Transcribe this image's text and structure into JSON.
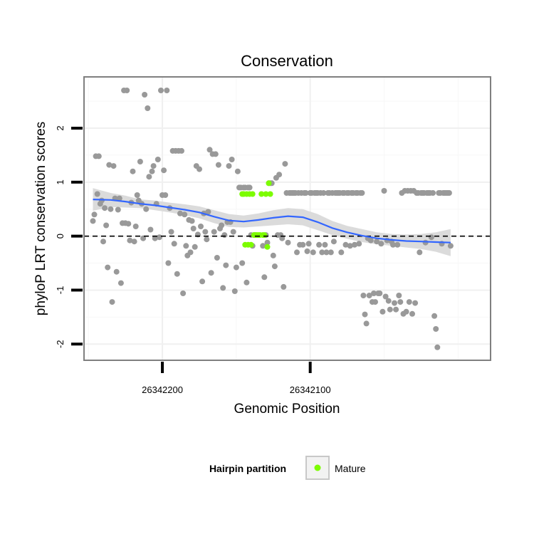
{
  "chart_data": {
    "type": "scatter",
    "title": "Conservation",
    "xlabel": "Genomic Position",
    "ylabel": "phyloP LRT conservation scores",
    "x_reversed": true,
    "xlim": [
      26342253,
      26341978
    ],
    "ylim": [
      -2.3,
      2.95
    ],
    "xticks": [
      {
        "value": 26342200,
        "label": "26342200"
      },
      {
        "value": 26342100,
        "label": "26342100"
      }
    ],
    "yticks": [
      {
        "value": 2,
        "label": "2"
      },
      {
        "value": 1,
        "label": "1"
      },
      {
        "value": 0,
        "label": "0"
      },
      {
        "value": -1,
        "label": "-1"
      },
      {
        "value": -2,
        "label": "-2"
      }
    ],
    "grid": true,
    "reference_line": {
      "y": 0,
      "style": "dashed",
      "color": "#000000"
    },
    "legend": {
      "title": "Hairpin partition",
      "position": "bottom",
      "entries": [
        {
          "label": "Mature",
          "color": "#7cfc00"
        }
      ]
    },
    "colors": {
      "other": "#999999",
      "mature": "#7cfc00",
      "smooth": "#3366ff",
      "ribbon": "#d9d9d9",
      "panel_border": "#7f7f7f"
    },
    "series": [
      {
        "name": "",
        "color": "#999999",
        "points": [
          [
            26342247,
            0.28
          ],
          [
            26342246,
            0.4
          ],
          [
            26342245,
            1.48
          ],
          [
            26342244,
            0.78
          ],
          [
            26342243,
            1.48
          ],
          [
            26342242,
            0.6
          ],
          [
            26342241,
            0.66
          ],
          [
            26342240,
            -0.1
          ],
          [
            26342239,
            0.52
          ],
          [
            26342238,
            0.2
          ],
          [
            26342237,
            -0.58
          ],
          [
            26342236,
            1.32
          ],
          [
            26342235,
            0.5
          ],
          [
            26342234,
            -1.22
          ],
          [
            26342233,
            1.3
          ],
          [
            26342232,
            0.7
          ],
          [
            26342231,
            -0.66
          ],
          [
            26342230,
            0.49
          ],
          [
            26342229,
            0.7
          ],
          [
            26342228,
            -0.87
          ],
          [
            26342227,
            0.24
          ],
          [
            26342226,
            2.7
          ],
          [
            26342225,
            0.24
          ],
          [
            26342224,
            2.7
          ],
          [
            26342223,
            0.23
          ],
          [
            26342222,
            -0.08
          ],
          [
            26342221,
            0.62
          ],
          [
            26342220,
            1.2
          ],
          [
            26342219,
            -0.1
          ],
          [
            26342218,
            0.18
          ],
          [
            26342217,
            0.76
          ],
          [
            26342216,
            0.66
          ],
          [
            26342215,
            1.38
          ],
          [
            26342214,
            0.6
          ],
          [
            26342213,
            -0.04
          ],
          [
            26342212,
            2.62
          ],
          [
            26342211,
            0.5
          ],
          [
            26342210,
            2.37
          ],
          [
            26342209,
            1.1
          ],
          [
            26342208,
            0.12
          ],
          [
            26342207,
            1.2
          ],
          [
            26342206,
            1.3
          ],
          [
            26342205,
            -0.04
          ],
          [
            26342204,
            0.6
          ],
          [
            26342203,
            1.42
          ],
          [
            26342202,
            -0.02
          ],
          [
            26342201,
            2.7
          ],
          [
            26342200,
            0.76
          ],
          [
            26342199,
            1.22
          ],
          [
            26342198,
            0.76
          ],
          [
            26342197,
            2.7
          ],
          [
            26342196,
            -0.5
          ],
          [
            26342195,
            0.52
          ],
          [
            26342194,
            0.08
          ],
          [
            26342193,
            1.58
          ],
          [
            26342192,
            -0.14
          ],
          [
            26342191,
            1.58
          ],
          [
            26342190,
            -0.7
          ],
          [
            26342189,
            1.58
          ],
          [
            26342188,
            0.42
          ],
          [
            26342187,
            1.58
          ],
          [
            26342186,
            -1.06
          ],
          [
            26342185,
            0.4
          ],
          [
            26342184,
            -0.18
          ],
          [
            26342183,
            -0.36
          ],
          [
            26342182,
            0.3
          ],
          [
            26342181,
            -0.3
          ],
          [
            26342180,
            0.28
          ],
          [
            26342179,
            0.14
          ],
          [
            26342178,
            -0.2
          ],
          [
            26342177,
            1.3
          ],
          [
            26342176,
            0.03
          ],
          [
            26342175,
            1.24
          ],
          [
            26342174,
            0.18
          ],
          [
            26342173,
            -0.84
          ],
          [
            26342172,
            0.42
          ],
          [
            26342171,
            0.08
          ],
          [
            26342170,
            -0.06
          ],
          [
            26342169,
            0.45
          ],
          [
            26342168,
            1.6
          ],
          [
            26342167,
            -0.68
          ],
          [
            26342166,
            1.52
          ],
          [
            26342165,
            0.08
          ],
          [
            26342164,
            1.52
          ],
          [
            26342163,
            -0.4
          ],
          [
            26342162,
            1.32
          ],
          [
            26342161,
            0.14
          ],
          [
            26342160,
            0.2
          ],
          [
            26342159,
            -0.96
          ],
          [
            26342158,
            0.02
          ],
          [
            26342157,
            -0.54
          ],
          [
            26342156,
            0.26
          ],
          [
            26342155,
            1.3
          ],
          [
            26342154,
            0.26
          ],
          [
            26342153,
            1.42
          ],
          [
            26342152,
            0.08
          ],
          [
            26342151,
            -1.02
          ],
          [
            26342150,
            -0.58
          ],
          [
            26342149,
            1.2
          ],
          [
            26342148,
            0.9
          ],
          [
            26342147,
            0.9
          ],
          [
            26342146,
            -0.5
          ],
          [
            26342145,
            0.9
          ],
          [
            26342144,
            0.9
          ],
          [
            26342143,
            -0.86
          ],
          [
            26342142,
            0.9
          ],
          [
            26342141,
            0.9
          ],
          [
            26342140,
            0.02
          ],
          [
            26342139,
            -0.18
          ],
          [
            26342138,
            0.02
          ],
          [
            26342137,
            0.02
          ],
          [
            26342132,
            -0.18
          ],
          [
            26342131,
            -0.76
          ],
          [
            26342130,
            0.02
          ],
          [
            26342129,
            -0.12
          ],
          [
            26342128,
            0.98
          ],
          [
            26342127,
            0.98
          ],
          [
            26342126,
            0.98
          ],
          [
            26342125,
            -0.36
          ],
          [
            26342124,
            -0.56
          ],
          [
            26342123,
            1.08
          ],
          [
            26342122,
            0.02
          ],
          [
            26342121,
            1.14
          ],
          [
            26342120,
            0.02
          ],
          [
            26342119,
            -0.04
          ],
          [
            26342118,
            -0.94
          ],
          [
            26342117,
            1.34
          ],
          [
            26342116,
            0.8
          ],
          [
            26342115,
            -0.12
          ],
          [
            26342114,
            0.8
          ],
          [
            26342113,
            0.8
          ],
          [
            26342112,
            0.8
          ],
          [
            26342111,
            0.8
          ],
          [
            26342110,
            0.8
          ],
          [
            26342109,
            -0.3
          ],
          [
            26342108,
            0.8
          ],
          [
            26342107,
            -0.16
          ],
          [
            26342106,
            0.8
          ],
          [
            26342105,
            -0.16
          ],
          [
            26342104,
            0.8
          ],
          [
            26342103,
            0.8
          ],
          [
            26342102,
            -0.28
          ],
          [
            26342101,
            -0.14
          ],
          [
            26342100,
            0.8
          ],
          [
            26342099,
            0.8
          ],
          [
            26342098,
            -0.3
          ],
          [
            26342097,
            0.8
          ],
          [
            26342096,
            0.8
          ],
          [
            26342095,
            0.8
          ],
          [
            26342094,
            -0.16
          ],
          [
            26342093,
            0.8
          ],
          [
            26342092,
            -0.3
          ],
          [
            26342091,
            0.8
          ],
          [
            26342090,
            -0.16
          ],
          [
            26342089,
            -0.3
          ],
          [
            26342088,
            0.8
          ],
          [
            26342087,
            0.8
          ],
          [
            26342086,
            -0.3
          ],
          [
            26342085,
            0.8
          ],
          [
            26342084,
            -0.1
          ],
          [
            26342083,
            0.8
          ],
          [
            26342082,
            0.8
          ],
          [
            26342081,
            0.8
          ],
          [
            26342080,
            0.8
          ],
          [
            26342079,
            -0.3
          ],
          [
            26342078,
            0.8
          ],
          [
            26342077,
            0.8
          ],
          [
            26342076,
            -0.16
          ],
          [
            26342075,
            0.8
          ],
          [
            26342074,
            0.8
          ],
          [
            26342073,
            -0.18
          ],
          [
            26342072,
            0.8
          ],
          [
            26342071,
            0.8
          ],
          [
            26342070,
            -0.16
          ],
          [
            26342069,
            0.8
          ],
          [
            26342068,
            0.8
          ],
          [
            26342067,
            -0.14
          ],
          [
            26342066,
            0.8
          ],
          [
            26342065,
            0.8
          ],
          [
            26342064,
            -1.1
          ],
          [
            26342063,
            -1.45
          ],
          [
            26342062,
            -1.62
          ],
          [
            26342061,
            -0.04
          ],
          [
            26342060,
            -1.1
          ],
          [
            26342059,
            -0.08
          ],
          [
            26342058,
            -1.22
          ],
          [
            26342057,
            -1.06
          ],
          [
            26342056,
            -1.22
          ],
          [
            26342055,
            -0.1
          ],
          [
            26342054,
            -1.06
          ],
          [
            26342053,
            -1.06
          ],
          [
            26342052,
            -0.14
          ],
          [
            26342051,
            -1.4
          ],
          [
            26342050,
            0.84
          ],
          [
            26342049,
            -1.12
          ],
          [
            26342048,
            -0.08
          ],
          [
            26342047,
            -1.2
          ],
          [
            26342046,
            -1.36
          ],
          [
            26342045,
            -0.1
          ],
          [
            26342044,
            -0.16
          ],
          [
            26342043,
            -1.24
          ],
          [
            26342042,
            -1.36
          ],
          [
            26342041,
            -0.16
          ],
          [
            26342040,
            -1.1
          ],
          [
            26342039,
            -1.22
          ],
          [
            26342038,
            0.8
          ],
          [
            26342037,
            -1.44
          ],
          [
            26342036,
            0.84
          ],
          [
            26342035,
            -1.4
          ],
          [
            26342034,
            0.84
          ],
          [
            26342033,
            -1.22
          ],
          [
            26342032,
            0.84
          ],
          [
            26342031,
            -1.44
          ],
          [
            26342030,
            0.84
          ],
          [
            26342029,
            -1.24
          ],
          [
            26342028,
            0.8
          ],
          [
            26342027,
            0.8
          ],
          [
            26342026,
            -0.3
          ],
          [
            26342025,
            0.8
          ],
          [
            26342024,
            0.8
          ],
          [
            26342023,
            0.8
          ],
          [
            26342022,
            -0.12
          ],
          [
            26342021,
            0.8
          ],
          [
            26342020,
            0.8
          ],
          [
            26342019,
            0.8
          ],
          [
            26342018,
            -0.02
          ],
          [
            26342017,
            0.8
          ],
          [
            26342016,
            -1.48
          ],
          [
            26342015,
            -1.72
          ],
          [
            26342014,
            -2.06
          ],
          [
            26342013,
            0.8
          ],
          [
            26342012,
            0.8
          ],
          [
            26342011,
            -0.14
          ],
          [
            26342010,
            0.8
          ],
          [
            26342009,
            0.8
          ],
          [
            26342008,
            0.8
          ],
          [
            26342007,
            0.8
          ],
          [
            26342006,
            0.8
          ],
          [
            26342005,
            -0.18
          ]
        ]
      },
      {
        "name": "Mature",
        "color": "#7cfc00",
        "points": [
          [
            26342146,
            0.78
          ],
          [
            26342145,
            0.78
          ],
          [
            26342144,
            -0.16
          ],
          [
            26342143,
            0.78
          ],
          [
            26342142,
            -0.16
          ],
          [
            26342141,
            0.78
          ],
          [
            26342140,
            -0.16
          ],
          [
            26342139,
            0.78
          ],
          [
            26342138,
            0.02
          ],
          [
            26342137,
            0.02
          ],
          [
            26342136,
            0.02
          ],
          [
            26342135,
            0.02
          ],
          [
            26342134,
            0.02
          ],
          [
            26342133,
            0.78
          ],
          [
            26342132,
            0.02
          ],
          [
            26342131,
            0.02
          ],
          [
            26342130,
            0.78
          ],
          [
            26342129,
            -0.2
          ],
          [
            26342128,
            0.98
          ],
          [
            26342127,
            0.78
          ]
        ]
      }
    ],
    "smooth": {
      "x": [
        26342247,
        26342235,
        26342225,
        26342215,
        26342205,
        26342195,
        26342185,
        26342175,
        26342165,
        26342155,
        26342145,
        26342135,
        26342125,
        26342115,
        26342105,
        26342095,
        26342085,
        26342075,
        26342065,
        26342055,
        26342045,
        26342035,
        26342025,
        26342015,
        26342005
      ],
      "y": [
        0.68,
        0.67,
        0.64,
        0.6,
        0.57,
        0.53,
        0.49,
        0.44,
        0.36,
        0.29,
        0.27,
        0.3,
        0.34,
        0.37,
        0.35,
        0.26,
        0.15,
        0.07,
        0.01,
        -0.04,
        -0.07,
        -0.09,
        -0.1,
        -0.11,
        -0.12
      ],
      "lower": [
        0.47,
        0.54,
        0.53,
        0.52,
        0.48,
        0.44,
        0.39,
        0.33,
        0.24,
        0.17,
        0.16,
        0.18,
        0.2,
        0.22,
        0.2,
        0.11,
        0.02,
        -0.05,
        -0.11,
        -0.15,
        -0.18,
        -0.21,
        -0.24,
        -0.29,
        -0.37
      ],
      "upper": [
        0.89,
        0.8,
        0.75,
        0.68,
        0.66,
        0.62,
        0.59,
        0.55,
        0.48,
        0.41,
        0.38,
        0.42,
        0.48,
        0.52,
        0.5,
        0.41,
        0.28,
        0.19,
        0.13,
        0.07,
        0.04,
        0.03,
        0.04,
        0.07,
        0.13
      ]
    }
  }
}
